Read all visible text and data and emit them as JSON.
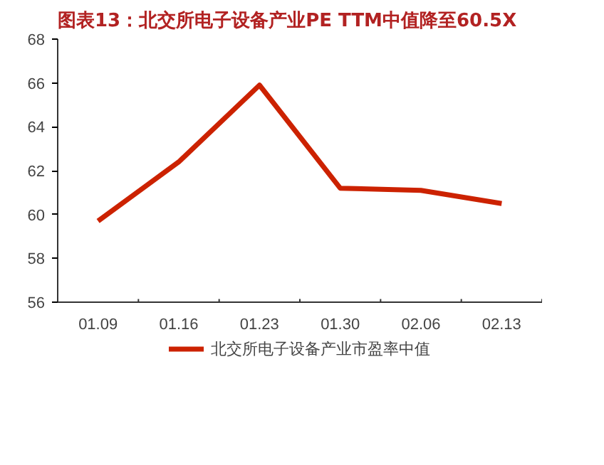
{
  "chart_data": {
    "type": "line",
    "title": "图表13：北交所电子设备产业PE TTM中值降至60.5X",
    "categories": [
      "01.09",
      "01.16",
      "01.23",
      "01.30",
      "02.06",
      "02.13"
    ],
    "series": [
      {
        "name": "北交所电子设备产业市盈率中值",
        "color": "#cc2200",
        "values": [
          59.7,
          62.4,
          65.9,
          61.2,
          61.1,
          60.5
        ]
      }
    ],
    "ylim": [
      56,
      68
    ],
    "yticks": [
      56,
      58,
      60,
      62,
      64,
      66,
      68
    ],
    "grid": false,
    "legend": "bottom",
    "marker": "none",
    "line_style": "solid"
  }
}
